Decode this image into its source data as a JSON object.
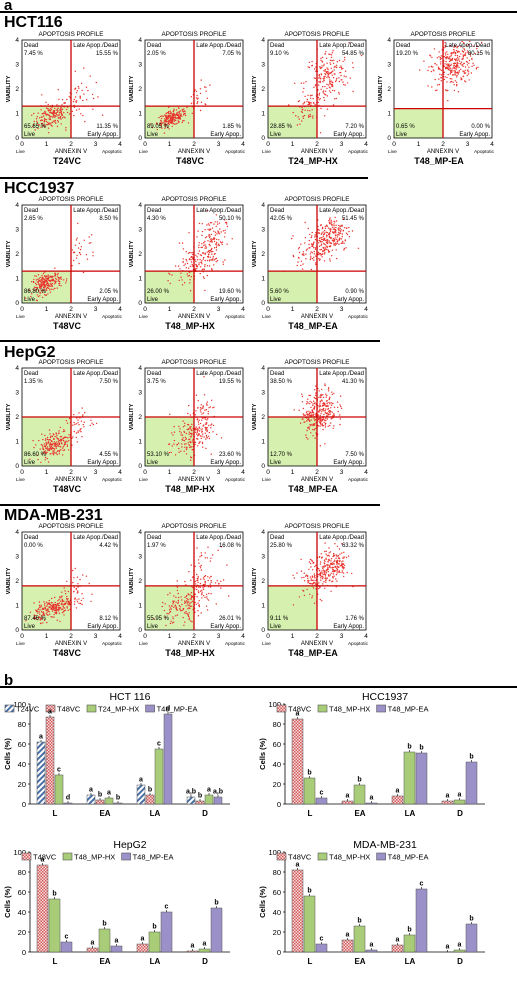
{
  "panel_a_label": "a",
  "panel_b_label": "b",
  "colors": {
    "dot": "#e8322c",
    "quad": "#d6f0b0",
    "line": "#cc0000",
    "hatch": "#4a6fa5",
    "check": "#d45b5b",
    "green": "#a8cc78",
    "purple": "#9b91c8"
  },
  "flow": {
    "profile_title": "APOPTOSIS PROFILE",
    "ylabel": "VIABILITY",
    "xlabel": "ANNEXIN V",
    "q_dead": "Dead",
    "q_late": "Late Apop./Dead",
    "q_live": "Live",
    "q_early": "Early Apop.",
    "x_left": "Live",
    "x_right": "Apoptotic",
    "x_ticks": [
      "0",
      "1",
      "2",
      "3",
      "4"
    ],
    "y_ticks": [
      "0",
      "1",
      "2",
      "3",
      "4"
    ]
  },
  "cell_lines": [
    {
      "name": "HCT116",
      "plots": [
        {
          "title": "T24VC",
          "dead": "7.45 %",
          "late": "15.55 %",
          "live": "65.65 %",
          "early": "11.35 %"
        },
        {
          "title": "T48VC",
          "dead": "2.05 %",
          "late": "7.05 %",
          "live": "89.05 %",
          "early": "1.85 %"
        },
        {
          "title": "T24_MP-HX",
          "dead": "9.10 %",
          "late": "54.85 %",
          "live": "28.85 %",
          "early": "7.20 %"
        },
        {
          "title": "T48_MP-EA",
          "dead": "19.20 %",
          "late": "80.15 %",
          "live": "0.65 %",
          "early": "0.00 %"
        }
      ]
    },
    {
      "name": "HCC1937",
      "plots": [
        {
          "title": "T48VC",
          "dead": "2.65 %",
          "late": "8.50 %",
          "live": "86.80 %",
          "early": "2.05 %"
        },
        {
          "title": "T48_MP-HX",
          "dead": "4.30 %",
          "late": "50.10 %",
          "live": "26.00 %",
          "early": "19.60 %"
        },
        {
          "title": "T48_MP-EA",
          "dead": "42.05 %",
          "late": "51.45 %",
          "live": "5.60 %",
          "early": "0.90 %"
        }
      ]
    },
    {
      "name": "HepG2",
      "plots": [
        {
          "title": "T48VC",
          "dead": "1.35 %",
          "late": "7.50 %",
          "live": "86.60 %",
          "early": "4.55 %"
        },
        {
          "title": "T48_MP-HX",
          "dead": "3.75 %",
          "late": "19.55 %",
          "live": "53.10 %",
          "early": "23.60 %"
        },
        {
          "title": "T48_MP-EA",
          "dead": "38.50 %",
          "late": "41.30 %",
          "live": "12.70 %",
          "early": "7.50 %"
        }
      ]
    },
    {
      "name": "MDA-MB-231",
      "plots": [
        {
          "title": "T48VC",
          "dead": "0.00 %",
          "late": "4.42 %",
          "live": "87.46 %",
          "early": "8.12 %"
        },
        {
          "title": "T48_MP-HX",
          "dead": "1.97 %",
          "late": "16.08 %",
          "live": "55.95 %",
          "early": "26.01 %"
        },
        {
          "title": "T48_MP-EA",
          "dead": "25.80 %",
          "late": "63.32 %",
          "live": "9.11 %",
          "early": "1.76 %"
        }
      ]
    }
  ],
  "chart_data": [
    {
      "type": "bar",
      "title": "HCT 116",
      "ylabel": "Cells (%)",
      "categories": [
        "L",
        "EA",
        "LA",
        "D"
      ],
      "ylim": [
        0,
        100
      ],
      "yticks": [
        "0",
        "20",
        "40",
        "60",
        "80",
        "100"
      ],
      "series": [
        {
          "name": "T24VC",
          "style": "hatch",
          "values": [
            62,
            9,
            19,
            7
          ],
          "letters": [
            "a",
            "a",
            "a",
            "a,b"
          ]
        },
        {
          "name": "T48VC",
          "style": "check",
          "values": [
            87,
            4,
            9,
            3
          ],
          "letters": [
            "a",
            "b",
            "b",
            "b"
          ]
        },
        {
          "name": "T24_MP-HX",
          "style": "green",
          "values": [
            29,
            6,
            55,
            9
          ],
          "letters": [
            "c",
            "a",
            "c",
            "a"
          ]
        },
        {
          "name": "T48_MP-EA",
          "style": "purple",
          "values": [
            1,
            1,
            90,
            7
          ],
          "letters": [
            "d",
            "b",
            "d",
            "a,b"
          ]
        }
      ]
    },
    {
      "type": "bar",
      "title": "HCC1937",
      "ylabel": "Cells (%)",
      "categories": [
        "L",
        "EA",
        "LA",
        "D"
      ],
      "ylim": [
        0,
        100
      ],
      "yticks": [
        "0",
        "20",
        "40",
        "60",
        "80",
        "100"
      ],
      "series": [
        {
          "name": "T48VC",
          "style": "check",
          "values": [
            85,
            3,
            8,
            3
          ],
          "letters": [
            "a",
            "a",
            "a",
            "a"
          ]
        },
        {
          "name": "T48_MP-HX",
          "style": "green",
          "values": [
            26,
            19,
            52,
            4
          ],
          "letters": [
            "b",
            "b",
            "b",
            "a"
          ]
        },
        {
          "name": "T48_MP-EA",
          "style": "purple",
          "values": [
            6,
            1,
            51,
            42
          ],
          "letters": [
            "c",
            "a",
            "b",
            "b"
          ]
        }
      ]
    },
    {
      "type": "bar",
      "title": "HepG2",
      "ylabel": "Cells (%)",
      "categories": [
        "L",
        "EA",
        "LA",
        "D"
      ],
      "ylim": [
        0,
        100
      ],
      "yticks": [
        "0",
        "20",
        "40",
        "60",
        "80",
        "100"
      ],
      "series": [
        {
          "name": "T48VC",
          "style": "check",
          "values": [
            87,
            4,
            8,
            1
          ],
          "letters": [
            "a",
            "a",
            "a",
            "a"
          ]
        },
        {
          "name": "T48_MP-HX",
          "style": "green",
          "values": [
            53,
            23,
            20,
            3
          ],
          "letters": [
            "b",
            "b",
            "b",
            "a"
          ]
        },
        {
          "name": "T48_MP-EA",
          "style": "purple",
          "values": [
            10,
            6,
            40,
            44
          ],
          "letters": [
            "c",
            "a",
            "c",
            "b"
          ]
        }
      ]
    },
    {
      "type": "bar",
      "title": "MDA-MB-231",
      "ylabel": "Cells (%)",
      "categories": [
        "L",
        "EA",
        "LA",
        "D"
      ],
      "ylim": [
        0,
        100
      ],
      "yticks": [
        "0",
        "20",
        "40",
        "60",
        "80",
        "100"
      ],
      "series": [
        {
          "name": "T48VC",
          "style": "check",
          "values": [
            82,
            12,
            7,
            0
          ],
          "letters": [
            "a",
            "a",
            "a",
            "a"
          ]
        },
        {
          "name": "T48_MP-HX",
          "style": "green",
          "values": [
            56,
            26,
            17,
            2
          ],
          "letters": [
            "b",
            "b",
            "b",
            "a"
          ]
        },
        {
          "name": "T48_MP-EA",
          "style": "purple",
          "values": [
            8,
            2,
            63,
            28
          ],
          "letters": [
            "c",
            "a",
            "c",
            "b"
          ]
        }
      ]
    }
  ]
}
